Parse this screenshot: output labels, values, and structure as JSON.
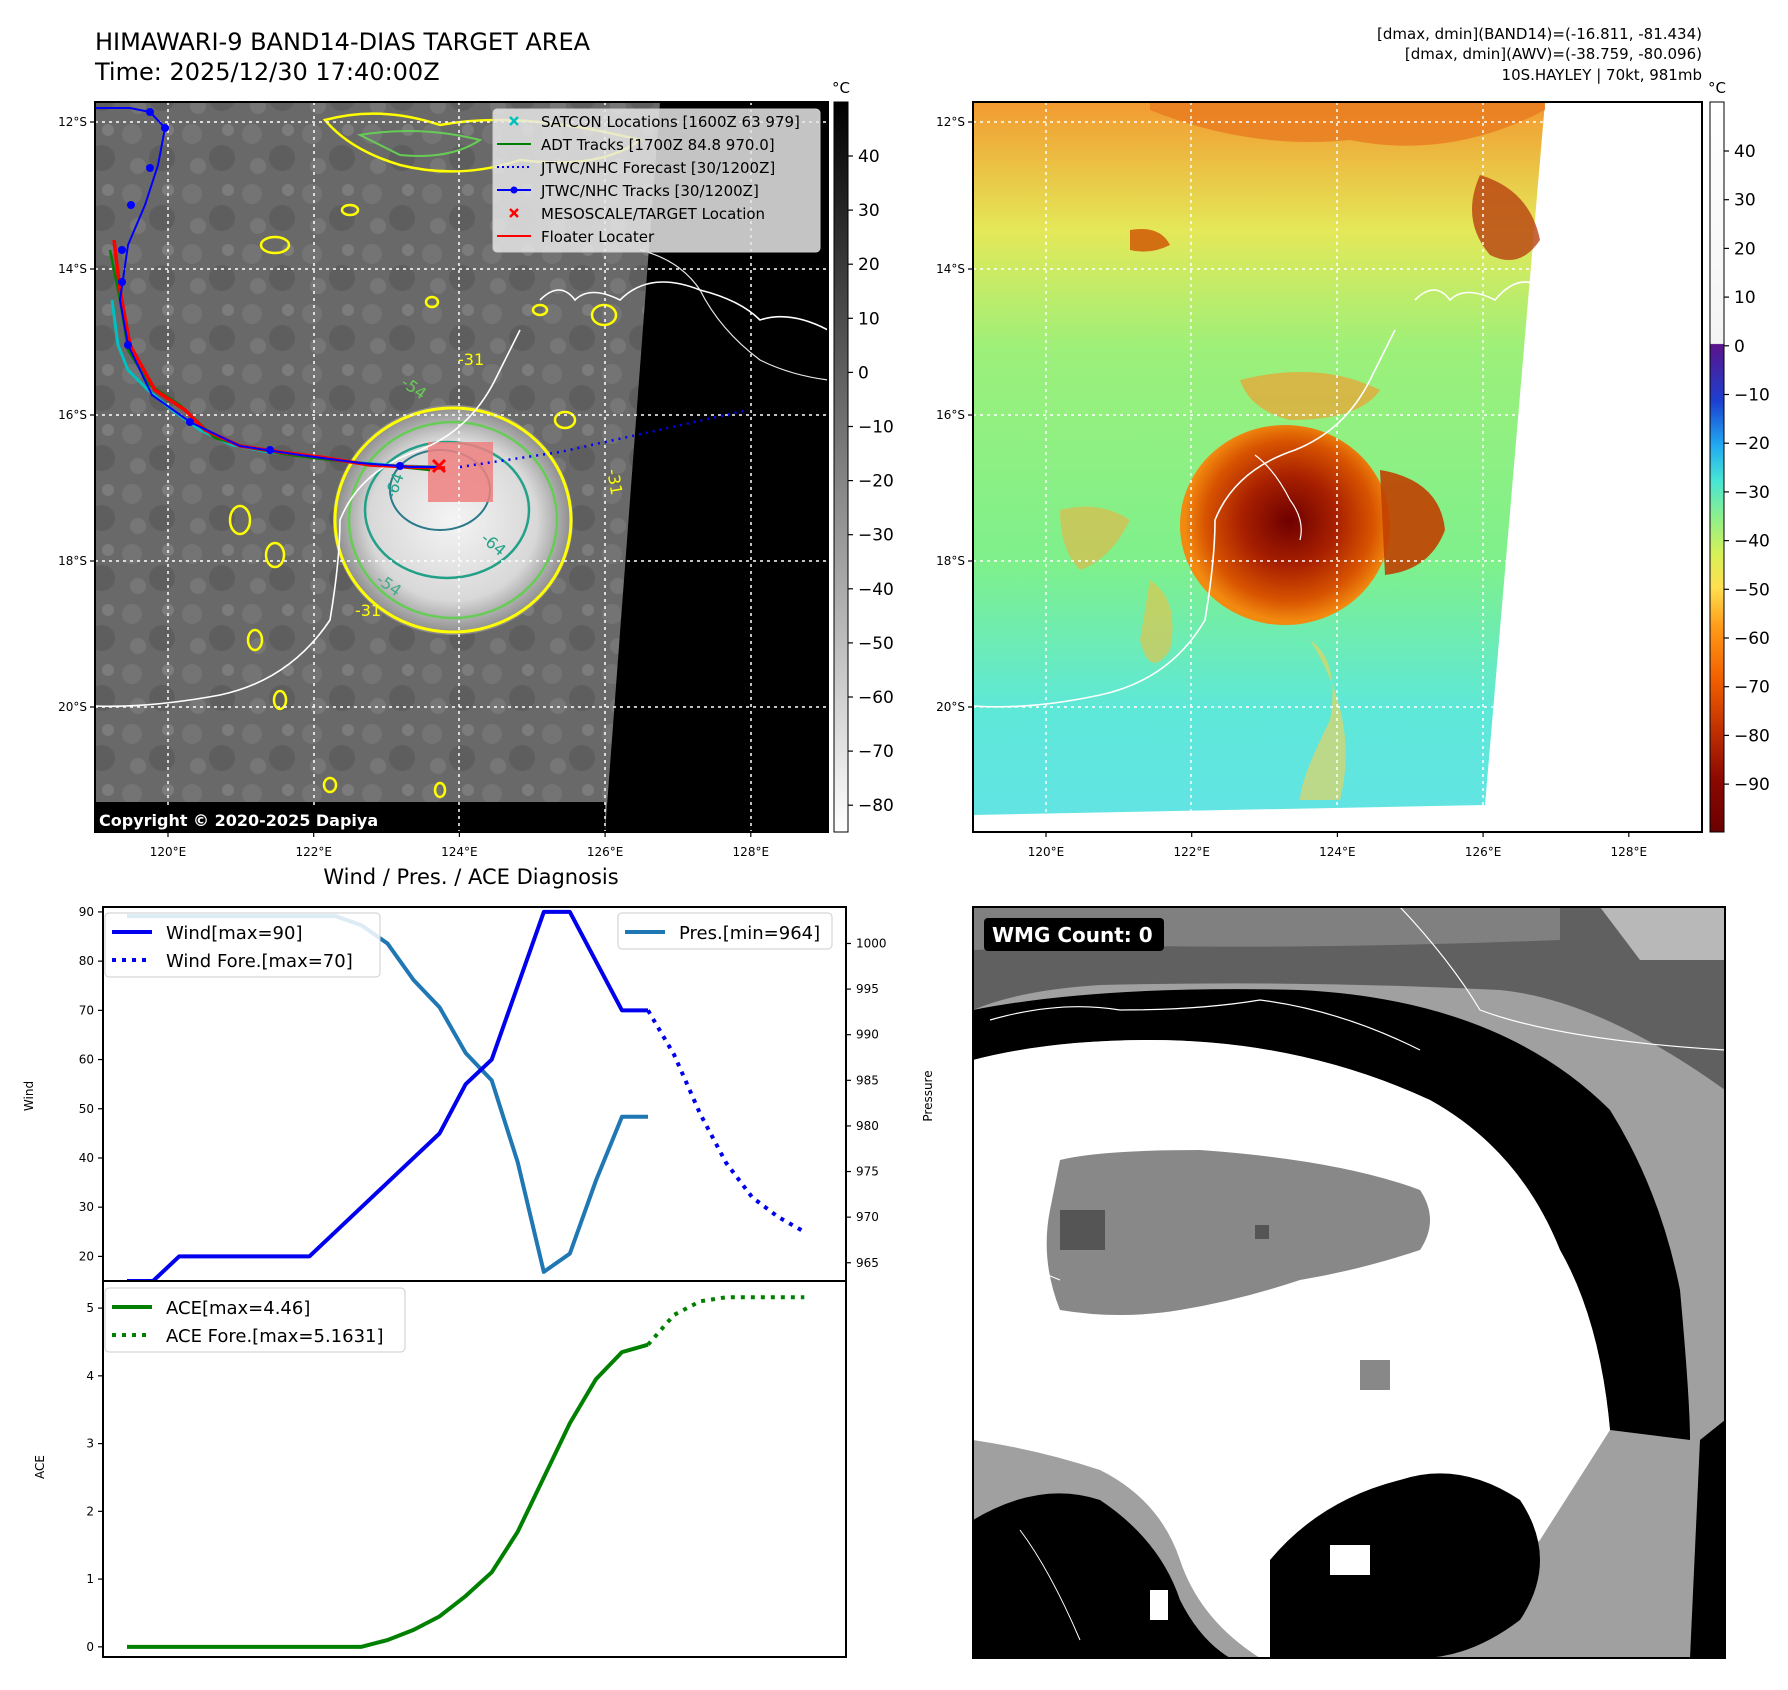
{
  "header": {
    "title_line1": "HIMAWARI-9 BAND14-DIAS TARGET AREA",
    "title_line2": "Time: 2025/12/30 17:40:00Z",
    "info_line1": "[dmax, dmin](BAND14)=(-16.811, -81.434)",
    "info_line2": "[dmax, dmin](AWV)=(-38.759, -80.096)",
    "info_line3": "10S.HAYLEY | 70kt, 981mb"
  },
  "copyright": "Copyright © 2020-2025 Dapiya",
  "wmg_label": "WMG Count: 0",
  "colors": {
    "wind": "#0000ee",
    "pressure": "#1f77b4",
    "ace": "#008000",
    "track_red": "#ff0000",
    "track_blue": "#0000ff",
    "adt_green": "#008000",
    "satcon_cyan": "#00c0c0"
  },
  "chart_data": [
    {
      "id": "ir-map",
      "type": "map",
      "axes": {
        "x_ticks": [
          "120°E",
          "122°E",
          "124°E",
          "126°E",
          "128°E"
        ],
        "y_ticks": [
          "12°S",
          "14°S",
          "16°S",
          "18°S",
          "20°S"
        ]
      },
      "colorbar": {
        "unit": "°C",
        "ticks": [
          "40",
          "30",
          "20",
          "10",
          "0",
          "−10",
          "−20",
          "−30",
          "−40",
          "−50",
          "−60",
          "−70",
          "−80"
        ]
      },
      "legend": {
        "position": "top-right",
        "items": [
          {
            "label": "SATCON Locations [1600Z 63 979]",
            "style": "x-marker",
            "color": "#00c0c0"
          },
          {
            "label": "ADT Tracks [1700Z 84.8 970.0]",
            "style": "solid",
            "color": "#008000"
          },
          {
            "label": "JTWC/NHC Forecast [30/1200Z]",
            "style": "dotted",
            "color": "#0000ff"
          },
          {
            "label": "JTWC/NHC Tracks [30/1200Z]",
            "style": "solid-dot",
            "color": "#0000ff"
          },
          {
            "label": "MESOSCALE/TARGET Location",
            "style": "x-marker",
            "color": "#ff0000"
          },
          {
            "label": "Floater Locater",
            "style": "solid",
            "color": "#ff0000"
          }
        ]
      },
      "contour_labels": [
        "-31",
        "-31",
        "-31",
        "-54",
        "-54",
        "-64",
        "-64"
      ]
    },
    {
      "id": "awv-map",
      "type": "map",
      "axes": {
        "x_ticks": [
          "120°E",
          "122°E",
          "124°E",
          "126°E",
          "128°E"
        ],
        "y_ticks": [
          "12°S",
          "14°S",
          "16°S",
          "18°S",
          "20°S"
        ]
      },
      "colorbar": {
        "unit": "°C",
        "ticks": [
          "40",
          "30",
          "20",
          "10",
          "0",
          "−10",
          "−20",
          "−30",
          "−40",
          "−50",
          "−60",
          "−70",
          "−80",
          "−90"
        ]
      }
    },
    {
      "id": "wind-pres",
      "type": "line",
      "title": "Wind / Pres. / ACE Diagnosis",
      "ylabel": "Wind",
      "y2label": "Pressure",
      "ylim": [
        15,
        91
      ],
      "y2lim": [
        963,
        1004
      ],
      "yticks": [
        "20",
        "30",
        "40",
        "50",
        "60",
        "70",
        "80",
        "90"
      ],
      "y2ticks": [
        "965",
        "970",
        "975",
        "980",
        "985",
        "990",
        "995",
        "1000"
      ],
      "legend_left": [
        "Wind[max=90]",
        "Wind Fore.[max=70]"
      ],
      "legend_right": [
        "Pres.[min=964]"
      ],
      "x": [
        0,
        1,
        2,
        3,
        4,
        5,
        6,
        7,
        8,
        9,
        10,
        11,
        12,
        13,
        14,
        15,
        16,
        17,
        18,
        19,
        20,
        21,
        22,
        23,
        24,
        25,
        26
      ],
      "series": [
        {
          "name": "Wind[max=90]",
          "x": [
            0,
            1,
            2,
            3,
            4,
            5,
            6,
            7,
            8,
            9,
            10,
            11,
            12,
            13,
            14,
            15,
            16,
            17,
            18,
            19,
            20
          ],
          "values": [
            15,
            15,
            20,
            20,
            20,
            20,
            20,
            20,
            25,
            30,
            35,
            40,
            45,
            55,
            60,
            75,
            90,
            90,
            80,
            70,
            70
          ]
        },
        {
          "name": "Wind Fore.[max=70]",
          "x": [
            20,
            21,
            22,
            23,
            24,
            25,
            26
          ],
          "values": [
            70,
            61,
            49,
            39,
            32,
            28,
            25
          ]
        },
        {
          "name": "Pres.[min=964]",
          "x": [
            0,
            1,
            2,
            3,
            4,
            5,
            6,
            7,
            8,
            9,
            10,
            11,
            12,
            13,
            14,
            15,
            16,
            17,
            18,
            19,
            20
          ],
          "values": [
            1003,
            1003,
            1003,
            1003,
            1003,
            1003,
            1003,
            1003,
            1003,
            1002,
            1000,
            996,
            993,
            988,
            985,
            976,
            964,
            966,
            974,
            981,
            981
          ]
        }
      ]
    },
    {
      "id": "ace",
      "type": "line",
      "ylabel": "ACE",
      "ylim": [
        -0.15,
        5.4
      ],
      "yticks": [
        "0",
        "1",
        "2",
        "3",
        "4",
        "5"
      ],
      "legend": [
        "ACE[max=4.46]",
        "ACE Fore.[max=5.1631]"
      ],
      "series": [
        {
          "name": "ACE[max=4.46]",
          "x": [
            0,
            1,
            2,
            3,
            4,
            5,
            6,
            7,
            8,
            9,
            10,
            11,
            12,
            13,
            14,
            15,
            16,
            17,
            18,
            19,
            20
          ],
          "values": [
            0,
            0,
            0,
            0,
            0,
            0,
            0,
            0,
            0,
            0,
            0.1,
            0.25,
            0.45,
            0.75,
            1.1,
            1.7,
            2.5,
            3.3,
            3.95,
            4.35,
            4.46
          ]
        },
        {
          "name": "ACE Fore.[max=5.1631]",
          "x": [
            20,
            21,
            22,
            23,
            24,
            25,
            26
          ],
          "values": [
            4.46,
            4.9,
            5.1,
            5.16,
            5.16,
            5.16,
            5.16
          ]
        }
      ]
    }
  ]
}
